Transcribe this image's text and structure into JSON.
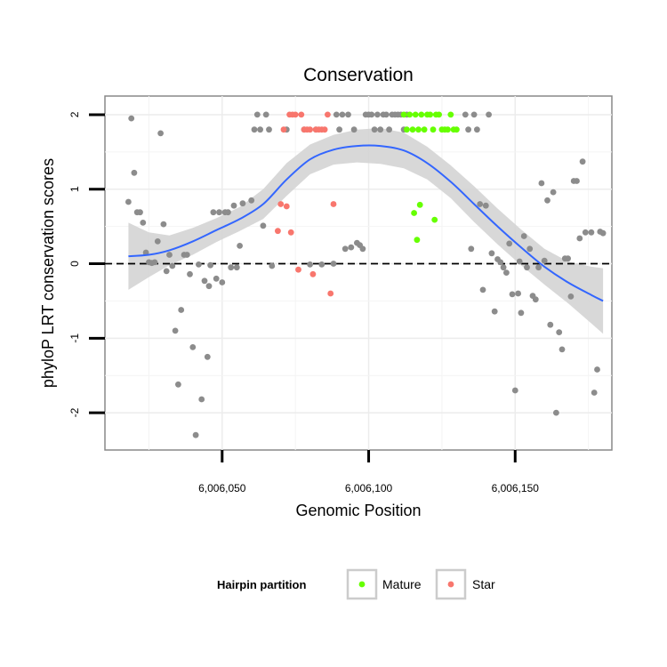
{
  "chart_data": {
    "type": "scatter",
    "title": "Conservation",
    "xlabel": "Genomic Position",
    "ylabel": "phyloP LRT conservation scores",
    "xlim": [
      6006010,
      6006183
    ],
    "ylim": [
      -2.5,
      2.25
    ],
    "x_ticks": [
      6006050,
      6006100,
      6006150
    ],
    "x_tick_labels": [
      "6,006,050",
      "6,006,100",
      "6,006,150"
    ],
    "y_ticks": [
      -2,
      -1,
      0,
      1,
      2
    ],
    "y_tick_labels": [
      "-2",
      "-1",
      "0",
      "1",
      "2"
    ],
    "grid": true,
    "reference_line": {
      "y": 0,
      "style": "dashed"
    },
    "legend": {
      "title": "Hairpin partition",
      "position": "bottom",
      "entries": [
        {
          "label": "Mature",
          "color": "#66ff00"
        },
        {
          "label": "Star",
          "color": "#f8766d"
        }
      ]
    },
    "colors": {
      "other": "#8c8c8c",
      "Mature": "#66ff00",
      "Star": "#f8766d",
      "smooth": "#3366ff",
      "band": "#d4d4d4"
    },
    "series": [
      {
        "name": "Other",
        "points": [
          [
            6006018,
            0.83
          ],
          [
            6006019,
            1.95
          ],
          [
            6006020,
            1.22
          ],
          [
            6006021,
            0.69
          ],
          [
            6006022,
            0.69
          ],
          [
            6006023,
            0.55
          ],
          [
            6006024,
            0.15
          ],
          [
            6006025,
            0.02
          ],
          [
            6006026,
            0.01
          ],
          [
            6006027,
            0.02
          ],
          [
            6006028,
            0.3
          ],
          [
            6006029,
            1.75
          ],
          [
            6006030,
            0.53
          ],
          [
            6006031,
            -0.1
          ],
          [
            6006032,
            0.12
          ],
          [
            6006033,
            -0.03
          ],
          [
            6006034,
            -0.9
          ],
          [
            6006035,
            -1.62
          ],
          [
            6006036,
            -0.62
          ],
          [
            6006037,
            0.12
          ],
          [
            6006038,
            0.12
          ],
          [
            6006039,
            -0.14
          ],
          [
            6006040,
            -1.12
          ],
          [
            6006041,
            -2.3
          ],
          [
            6006042,
            -0.01
          ],
          [
            6006043,
            -1.82
          ],
          [
            6006044,
            -0.23
          ],
          [
            6006045,
            -1.25
          ],
          [
            6006045.5,
            -0.3
          ],
          [
            6006046,
            -0.02
          ],
          [
            6006047,
            0.69
          ],
          [
            6006048,
            -0.2
          ],
          [
            6006049,
            0.69
          ],
          [
            6006050,
            -0.25
          ],
          [
            6006051,
            0.69
          ],
          [
            6006052,
            0.69
          ],
          [
            6006053,
            -0.05
          ],
          [
            6006054,
            0.78
          ],
          [
            6006055,
            -0.05
          ],
          [
            6006056,
            0.24
          ],
          [
            6006057,
            0.81
          ],
          [
            6006060,
            0.85
          ],
          [
            6006061,
            1.8
          ],
          [
            6006062,
            2.0
          ],
          [
            6006063,
            1.8
          ],
          [
            6006064,
            0.51
          ],
          [
            6006065,
            2.0
          ],
          [
            6006066,
            1.8
          ],
          [
            6006067,
            -0.03
          ],
          [
            6006072,
            1.8
          ],
          [
            6006078,
            1.8
          ],
          [
            6006080,
            -0.01
          ],
          [
            6006082,
            1.8
          ],
          [
            6006084,
            -0.01
          ],
          [
            6006088,
            0.0
          ],
          [
            6006089,
            2.0
          ],
          [
            6006090,
            1.8
          ],
          [
            6006091,
            2.0
          ],
          [
            6006092,
            0.2
          ],
          [
            6006093,
            2.0
          ],
          [
            6006094,
            0.22
          ],
          [
            6006095,
            1.8
          ],
          [
            6006096,
            0.28
          ],
          [
            6006097,
            0.25
          ],
          [
            6006098,
            0.2
          ],
          [
            6006099,
            2.0
          ],
          [
            6006100,
            2.0
          ],
          [
            6006101,
            2.0
          ],
          [
            6006102,
            1.8
          ],
          [
            6006103,
            2.0
          ],
          [
            6006104,
            1.8
          ],
          [
            6006105,
            2.0
          ],
          [
            6006106,
            2.0
          ],
          [
            6006107,
            1.8
          ],
          [
            6006108,
            2.0
          ],
          [
            6006109,
            2.0
          ],
          [
            6006110,
            2.0
          ],
          [
            6006111,
            2.0
          ],
          [
            6006112,
            1.8
          ],
          [
            6006113,
            2.0
          ],
          [
            6006133,
            2.0
          ],
          [
            6006134,
            1.8
          ],
          [
            6006135,
            0.2
          ],
          [
            6006136,
            2.0
          ],
          [
            6006137,
            1.8
          ],
          [
            6006138,
            0.8
          ],
          [
            6006139,
            -0.35
          ],
          [
            6006140,
            0.78
          ],
          [
            6006141,
            2.0
          ],
          [
            6006142,
            0.14
          ],
          [
            6006143,
            -0.64
          ],
          [
            6006144,
            0.06
          ],
          [
            6006145,
            0.02
          ],
          [
            6006146,
            -0.05
          ],
          [
            6006147,
            -0.12
          ],
          [
            6006148,
            0.27
          ],
          [
            6006149,
            -0.41
          ],
          [
            6006150,
            -1.7
          ],
          [
            6006151,
            -0.4
          ],
          [
            6006151.5,
            0.03
          ],
          [
            6006152,
            -0.66
          ],
          [
            6006153,
            0.37
          ],
          [
            6006154,
            -0.05
          ],
          [
            6006155,
            0.2
          ],
          [
            6006156,
            -0.43
          ],
          [
            6006157,
            -0.48
          ],
          [
            6006158,
            -0.05
          ],
          [
            6006159,
            1.08
          ],
          [
            6006160,
            0.04
          ],
          [
            6006161,
            0.85
          ],
          [
            6006162,
            -0.82
          ],
          [
            6006163,
            0.96
          ],
          [
            6006164,
            -2.0
          ],
          [
            6006165,
            -0.92
          ],
          [
            6006166,
            -1.15
          ],
          [
            6006167,
            0.07
          ],
          [
            6006168,
            0.07
          ],
          [
            6006169,
            -0.44
          ],
          [
            6006170,
            1.11
          ],
          [
            6006171,
            1.11
          ],
          [
            6006172,
            0.34
          ],
          [
            6006173,
            1.37
          ],
          [
            6006174,
            0.42
          ],
          [
            6006176,
            0.42
          ],
          [
            6006177,
            -1.73
          ],
          [
            6006178,
            -1.42
          ],
          [
            6006179,
            0.43
          ],
          [
            6006180,
            0.41
          ]
        ]
      },
      {
        "name": "Mature",
        "points": [
          [
            6006112,
            2.0
          ],
          [
            6006113,
            1.8
          ],
          [
            6006114,
            2.0
          ],
          [
            6006115,
            1.8
          ],
          [
            6006115.5,
            0.68
          ],
          [
            6006116,
            2.0
          ],
          [
            6006116.5,
            0.32
          ],
          [
            6006117,
            1.8
          ],
          [
            6006117.5,
            0.79
          ],
          [
            6006118,
            2.0
          ],
          [
            6006119,
            1.8
          ],
          [
            6006120,
            2.0
          ],
          [
            6006121,
            2.0
          ],
          [
            6006122,
            1.8
          ],
          [
            6006122.5,
            0.59
          ],
          [
            6006123,
            2.0
          ],
          [
            6006124,
            2.0
          ],
          [
            6006125,
            1.8
          ],
          [
            6006126,
            1.8
          ],
          [
            6006127,
            1.8
          ],
          [
            6006128,
            2.0
          ],
          [
            6006129,
            1.8
          ],
          [
            6006130,
            1.8
          ]
        ]
      },
      {
        "name": "Star",
        "points": [
          [
            6006069,
            0.44
          ],
          [
            6006070,
            0.8
          ],
          [
            6006071,
            1.8
          ],
          [
            6006072,
            0.77
          ],
          [
            6006073,
            2.0
          ],
          [
            6006073.5,
            0.42
          ],
          [
            6006074,
            2.0
          ],
          [
            6006075,
            2.0
          ],
          [
            6006076,
            -0.08
          ],
          [
            6006077,
            2.0
          ],
          [
            6006078,
            1.8
          ],
          [
            6006079,
            1.8
          ],
          [
            6006080,
            1.8
          ],
          [
            6006081,
            -0.14
          ],
          [
            6006082,
            1.8
          ],
          [
            6006083,
            1.8
          ],
          [
            6006084,
            1.8
          ],
          [
            6006085,
            1.8
          ],
          [
            6006086,
            2.0
          ],
          [
            6006087,
            -0.4
          ],
          [
            6006088,
            0.8
          ]
        ]
      }
    ],
    "smooth": {
      "x": [
        6006018,
        6006025,
        6006032,
        6006040,
        6006048,
        6006056,
        6006064,
        6006072,
        6006080,
        6006088,
        6006096,
        6006104,
        6006112,
        6006120,
        6006128,
        6006136,
        6006144,
        6006152,
        6006160,
        6006168,
        6006176,
        6006180
      ],
      "y": [
        0.1,
        0.12,
        0.18,
        0.3,
        0.45,
        0.6,
        0.8,
        1.13,
        1.4,
        1.53,
        1.58,
        1.58,
        1.52,
        1.35,
        1.1,
        0.8,
        0.5,
        0.22,
        -0.04,
        -0.25,
        -0.42,
        -0.5
      ],
      "band": [
        0.45,
        0.3,
        0.2,
        0.18,
        0.16,
        0.16,
        0.2,
        0.22,
        0.2,
        0.2,
        0.22,
        0.24,
        0.24,
        0.22,
        0.22,
        0.24,
        0.24,
        0.24,
        0.24,
        0.28,
        0.38,
        0.44
      ]
    }
  }
}
